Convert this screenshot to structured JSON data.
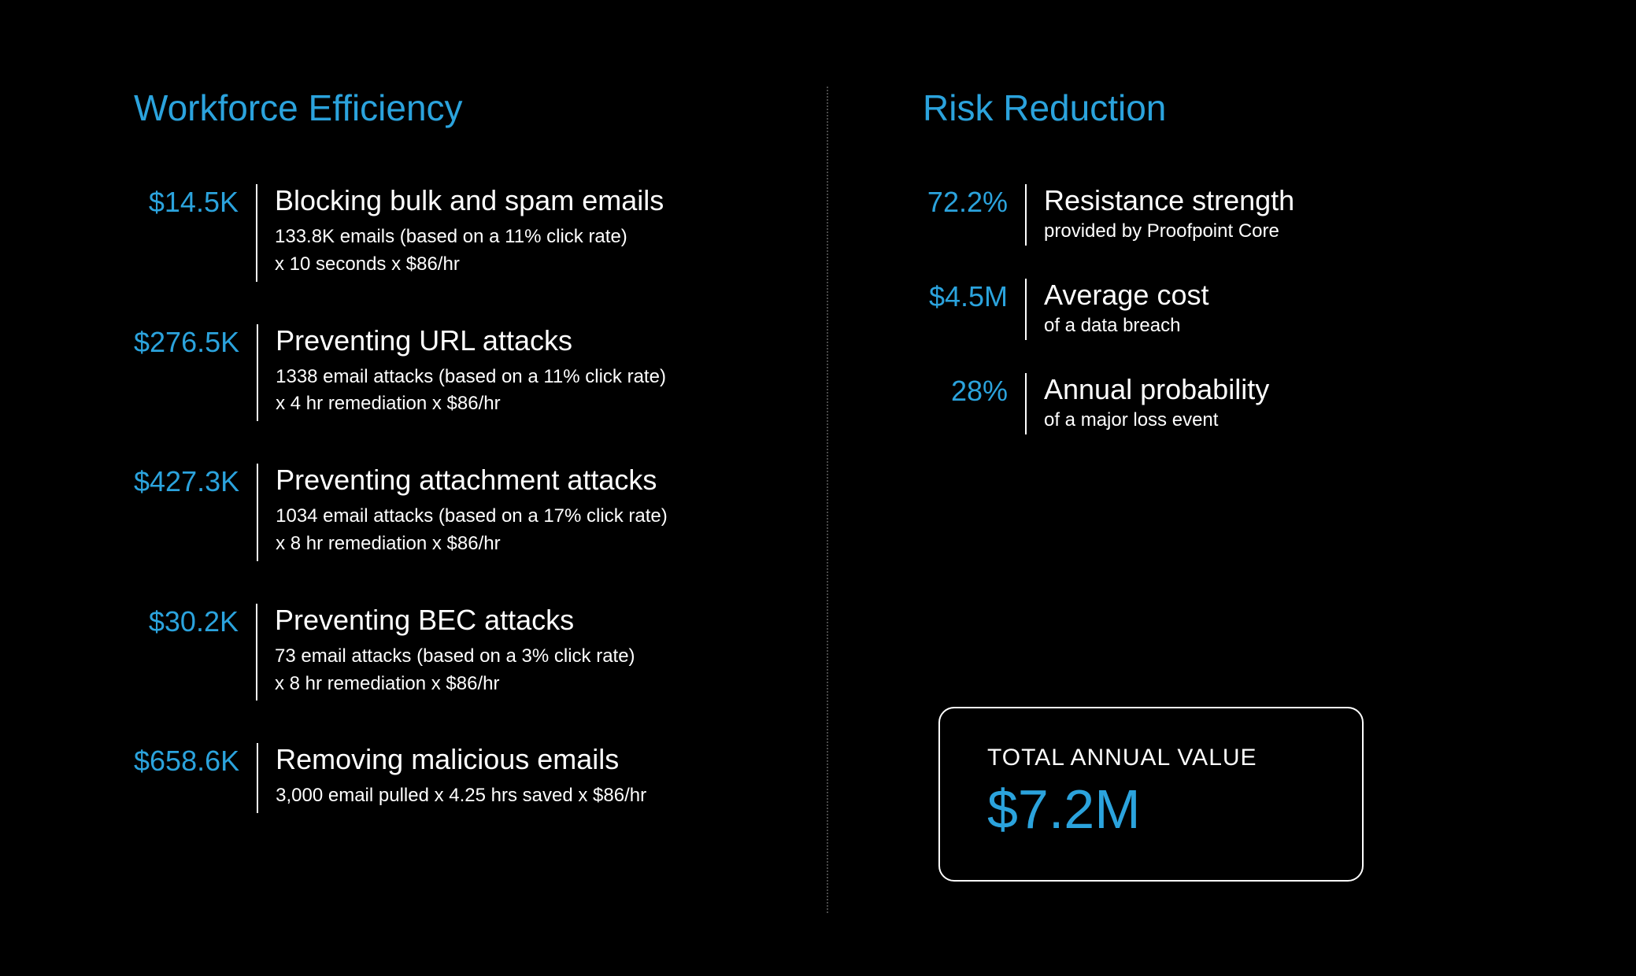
{
  "colors": {
    "accent": "#2ba3dd",
    "background": "#000000",
    "text": "#ffffff",
    "divider": "#ffffff",
    "dotted_divider": "#4a4a4a"
  },
  "typography": {
    "section_title_fontsize": 46,
    "metric_value_fontsize": 36,
    "metric_title_fontsize": 36,
    "metric_detail_fontsize": 24,
    "total_label_fontsize": 30,
    "total_value_fontsize": 70
  },
  "left": {
    "title": "Workforce Efficiency",
    "items": [
      {
        "value": "$14.5K",
        "title": "Blocking bulk and spam emails",
        "detail_line1": "133.8K emails (based on a 11% click rate)",
        "detail_line2": "x 10 seconds x $86/hr"
      },
      {
        "value": "$276.5K",
        "title": "Preventing URL attacks",
        "detail_line1": "1338 email attacks (based on a 11% click rate)",
        "detail_line2": "x 4 hr remediation x $86/hr"
      },
      {
        "value": "$427.3K",
        "title": "Preventing attachment attacks",
        "detail_line1": "1034 email attacks (based on a 17% click rate)",
        "detail_line2": "x 8 hr remediation x $86/hr"
      },
      {
        "value": "$30.2K",
        "title": "Preventing BEC attacks",
        "detail_line1": "73 email attacks (based on a 3% click rate)",
        "detail_line2": "x 8 hr remediation x $86/hr"
      },
      {
        "value": "$658.6K",
        "title": "Removing malicious emails",
        "detail_line1": "3,000 email pulled x 4.25 hrs saved x $86/hr",
        "detail_line2": ""
      }
    ]
  },
  "right": {
    "title": "Risk Reduction",
    "items": [
      {
        "value": "72.2%",
        "title": "Resistance strength",
        "detail": "provided by Proofpoint Core"
      },
      {
        "value": "$4.5M",
        "title": "Average cost",
        "detail": "of a data breach"
      },
      {
        "value": "28%",
        "title": "Annual probability",
        "detail": "of a major loss event"
      }
    ],
    "total": {
      "label": "TOTAL ANNUAL VALUE",
      "value": "$7.2M"
    }
  }
}
